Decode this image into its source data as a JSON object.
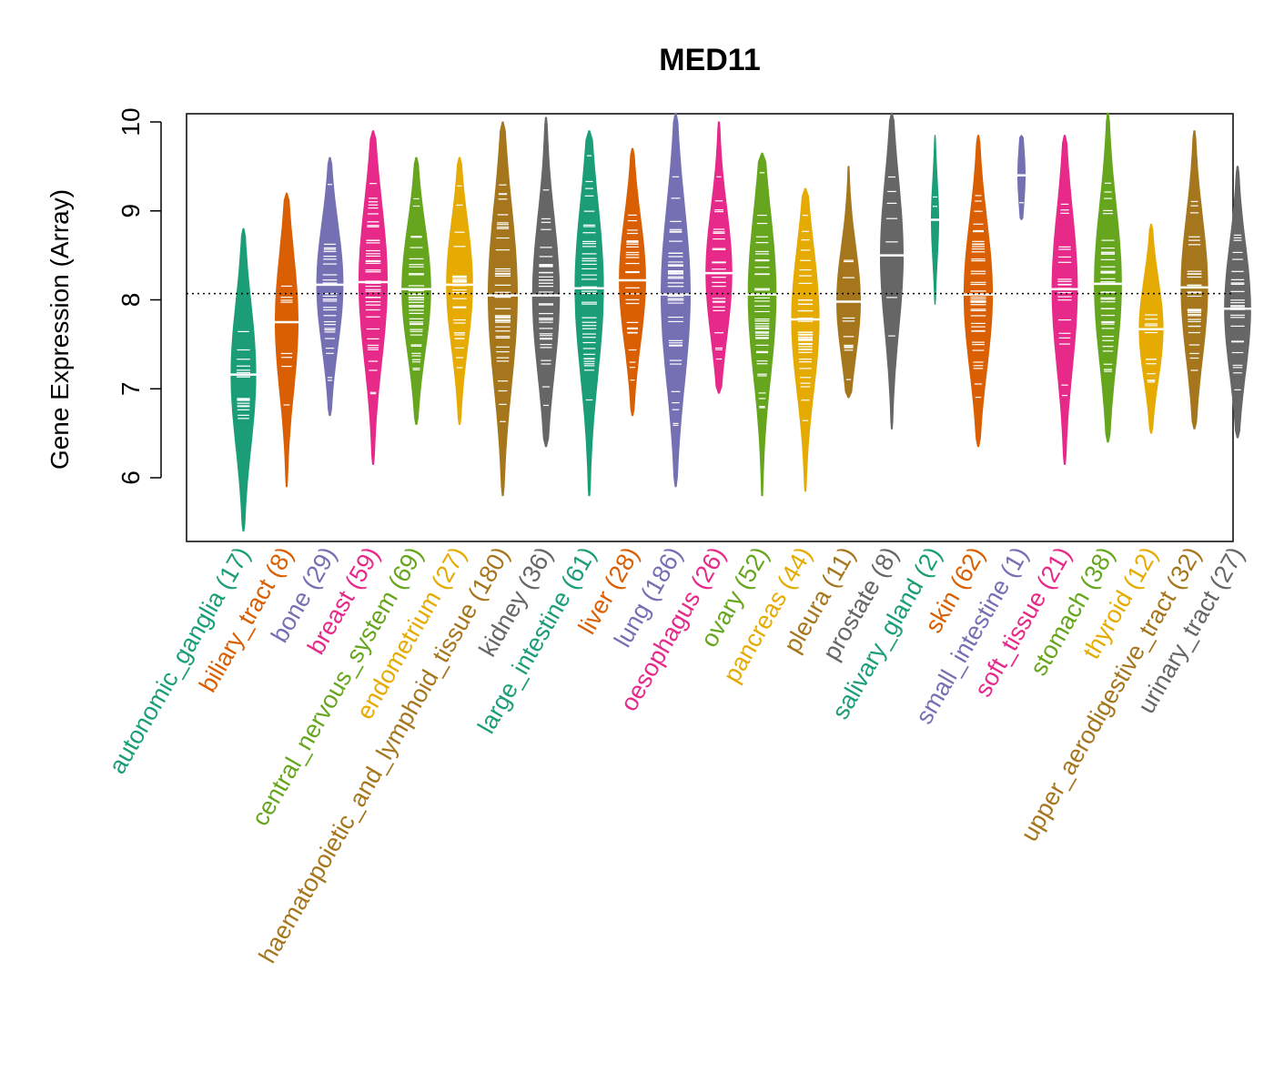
{
  "chart_data": {
    "type": "violin",
    "title": "MED11",
    "ylabel": "Gene Expression (Array)",
    "xlabel": "",
    "ylim": [
      5.3,
      10.1
    ],
    "y_ticks": [
      "6",
      "7",
      "8",
      "9",
      "10"
    ],
    "reference_line": 8.07,
    "categories": [
      {
        "name": "autonomic_ganglia",
        "n": 17,
        "label": "autonomic_ganglia (17)",
        "color": "#1B9E77",
        "min": 5.4,
        "max": 8.8,
        "median": 7.16
      },
      {
        "name": "biliary_tract",
        "n": 8,
        "label": "biliary_tract (8)",
        "color": "#D95F02",
        "min": 5.9,
        "max": 9.2,
        "median": 7.75
      },
      {
        "name": "bone",
        "n": 29,
        "label": "bone (29)",
        "color": "#7570B3",
        "min": 6.7,
        "max": 9.6,
        "median": 8.17
      },
      {
        "name": "breast",
        "n": 59,
        "label": "breast (59)",
        "color": "#E7298A",
        "min": 6.15,
        "max": 9.9,
        "median": 8.2
      },
      {
        "name": "central_nervous_system",
        "n": 69,
        "label": "central_nervous_system (69)",
        "color": "#66A61E",
        "min": 6.6,
        "max": 9.6,
        "median": 8.12
      },
      {
        "name": "endometrium",
        "n": 27,
        "label": "endometrium (27)",
        "color": "#E6AB02",
        "min": 6.6,
        "max": 9.6,
        "median": 8.17
      },
      {
        "name": "haematopoietic_and_lymphoid_tissue",
        "n": 180,
        "label": "haematopoietic_and_lymphoid_tissue (180)",
        "color": "#A6761D",
        "min": 5.8,
        "max": 10.0,
        "median": 8.05
      },
      {
        "name": "kidney",
        "n": 36,
        "label": "kidney (36)",
        "color": "#666666",
        "min": 6.35,
        "max": 10.05,
        "median": 8.05
      },
      {
        "name": "large_intestine",
        "n": 61,
        "label": "large_intestine (61)",
        "color": "#1B9E77",
        "min": 5.8,
        "max": 9.9,
        "median": 8.13
      },
      {
        "name": "liver",
        "n": 28,
        "label": "liver (28)",
        "color": "#D95F02",
        "min": 6.7,
        "max": 9.7,
        "median": 8.22
      },
      {
        "name": "lung",
        "n": 186,
        "label": "lung (186)",
        "color": "#7570B3",
        "min": 5.9,
        "max": 10.1,
        "median": 8.06
      },
      {
        "name": "oesophagus",
        "n": 26,
        "label": "oesophagus (26)",
        "color": "#E7298A",
        "min": 6.95,
        "max": 10.0,
        "median": 8.3
      },
      {
        "name": "ovary",
        "n": 52,
        "label": "ovary (52)",
        "color": "#66A61E",
        "min": 5.8,
        "max": 9.65,
        "median": 8.06
      },
      {
        "name": "pancreas",
        "n": 44,
        "label": "pancreas (44)",
        "color": "#E6AB02",
        "min": 5.85,
        "max": 9.25,
        "median": 7.78
      },
      {
        "name": "pleura",
        "n": 11,
        "label": "pleura (11)",
        "color": "#A6761D",
        "min": 6.9,
        "max": 9.5,
        "median": 7.98
      },
      {
        "name": "prostate",
        "n": 8,
        "label": "prostate (8)",
        "color": "#666666",
        "min": 6.55,
        "max": 10.1,
        "median": 8.5
      },
      {
        "name": "salivary_gland",
        "n": 2,
        "label": "salivary_gland (2)",
        "color": "#1B9E77",
        "min": 7.95,
        "max": 9.85,
        "median": 8.9
      },
      {
        "name": "skin",
        "n": 62,
        "label": "skin (62)",
        "color": "#D95F02",
        "min": 6.35,
        "max": 9.85,
        "median": 8.06
      },
      {
        "name": "small_intestine",
        "n": 1,
        "label": "small_intestine (1)",
        "color": "#7570B3",
        "min": 8.9,
        "max": 9.85,
        "median": 9.4
      },
      {
        "name": "soft_tissue",
        "n": 21,
        "label": "soft_tissue (21)",
        "color": "#E7298A",
        "min": 6.15,
        "max": 9.85,
        "median": 8.12
      },
      {
        "name": "stomach",
        "n": 38,
        "label": "stomach (38)",
        "color": "#66A61E",
        "min": 6.4,
        "max": 10.1,
        "median": 8.18
      },
      {
        "name": "thyroid",
        "n": 12,
        "label": "thyroid (12)",
        "color": "#E6AB02",
        "min": 6.5,
        "max": 8.85,
        "median": 7.67
      },
      {
        "name": "upper_aerodigestive_tract",
        "n": 32,
        "label": "upper_aerodigestive_tract (32)",
        "color": "#A6761D",
        "min": 6.55,
        "max": 9.9,
        "median": 8.14
      },
      {
        "name": "urinary_tract",
        "n": 27,
        "label": "urinary_tract (27)",
        "color": "#666666",
        "min": 6.45,
        "max": 9.5,
        "median": 7.9
      }
    ],
    "grid": false,
    "legend": "none"
  }
}
